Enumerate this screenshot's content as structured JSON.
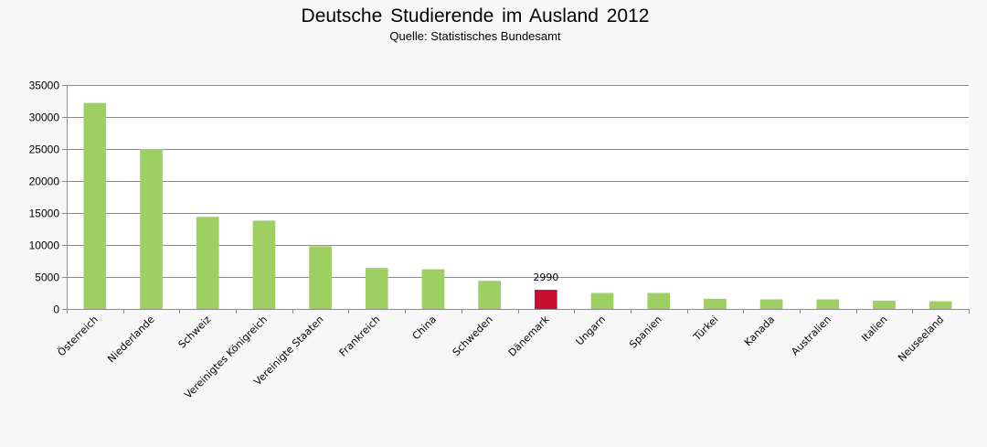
{
  "chart_data": {
    "type": "bar",
    "title": "Deutsche Studierende im Ausland 2012",
    "subtitle": "Quelle: Statistisches Bundesamt",
    "xlabel": "",
    "ylabel": "",
    "categories": [
      "Österreich",
      "Niederlande",
      "Schweiz",
      "Vereinigtes Königreich",
      "Vereinigte Staaten",
      "Frankreich",
      "China",
      "Schweden",
      "Dänemark",
      "Ungarn",
      "Spanien",
      "Türkei",
      "Kanada",
      "Australien",
      "Italien",
      "Neuseeland"
    ],
    "series": [
      {
        "values": [
          32200,
          25000,
          14400,
          13800,
          9800,
          6400,
          6200,
          4400,
          2990,
          2500,
          2500,
          1600,
          1500,
          1500,
          1300,
          1200
        ]
      }
    ],
    "data_labels": [
      {
        "category": "Dänemark",
        "text": "2990"
      }
    ],
    "highlight": {
      "category": "Dänemark",
      "color": "#c8102e"
    },
    "bar_color": "#9dcf62",
    "ylim": [
      0,
      35000
    ],
    "yticks": [
      0,
      5000,
      10000,
      15000,
      20000,
      25000,
      30000,
      35000
    ],
    "grid": true,
    "legend": "none"
  }
}
